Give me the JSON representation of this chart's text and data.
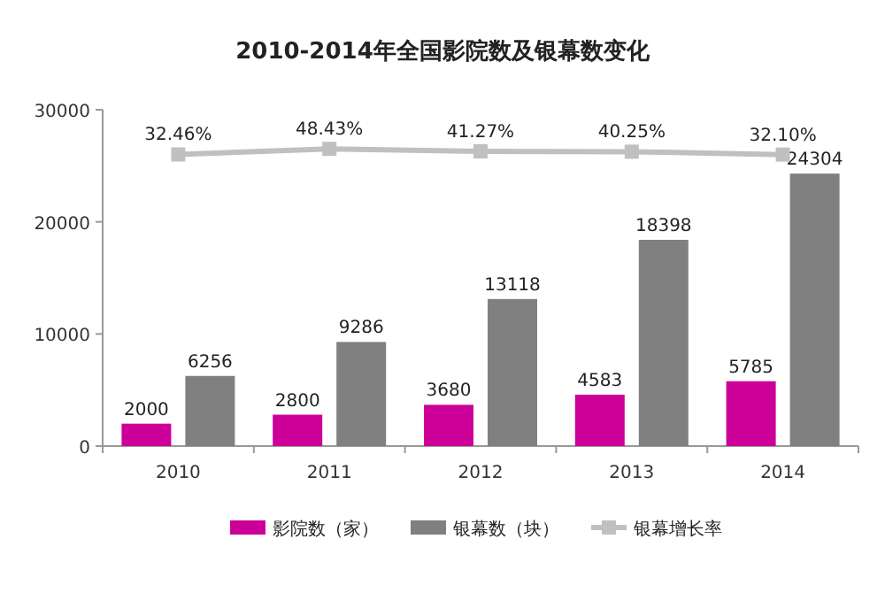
{
  "chart_data": {
    "type": "bar",
    "title": "2010-2014年全国影院数及银幕数变化",
    "categories": [
      "2010",
      "2011",
      "2012",
      "2013",
      "2014"
    ],
    "series": [
      {
        "name": "影院数（家）",
        "color": "#cc0099",
        "values": [
          2000,
          2800,
          3680,
          4583,
          5785
        ]
      },
      {
        "name": "银幕数（块）",
        "color": "#808080",
        "values": [
          6256,
          9286,
          13118,
          18398,
          24304
        ]
      },
      {
        "name": "银幕增长率",
        "color": "#c0c0c0",
        "type": "line",
        "axis": "y2",
        "marker": "square",
        "value_labels": [
          "32.46%",
          "48.43%",
          "41.27%",
          "40.25%",
          "32.10%"
        ],
        "values": [
          32.46,
          48.43,
          41.27,
          40.25,
          32.1
        ]
      }
    ],
    "ylim": [
      0,
      30000
    ],
    "yticks": [
      0,
      10000,
      20000,
      30000
    ],
    "y2lim": [
      -800,
      160
    ],
    "data_labels": true,
    "grid": false,
    "legend": "bottom"
  }
}
